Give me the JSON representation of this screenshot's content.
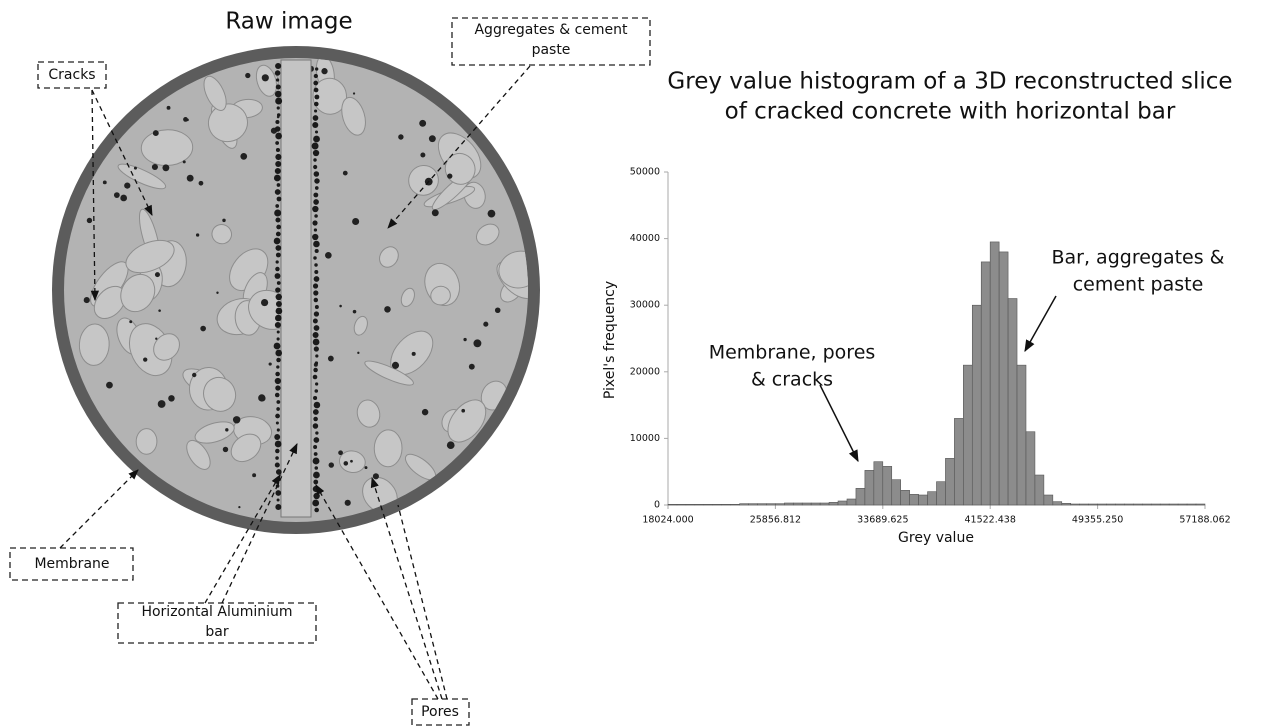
{
  "image": {
    "title": "Raw image",
    "labels": [
      [
        "Cracks"
      ],
      [
        "Aggregates & cement",
        "paste"
      ],
      [
        "Membrane"
      ],
      [
        "Horizontal Aluminium",
        "bar"
      ],
      [
        "Pores"
      ]
    ]
  },
  "chart_data": {
    "type": "histogram",
    "title": [
      "Grey value histogram of a 3D reconstructed slice",
      "of cracked concrete with horizontal bar"
    ],
    "x_label": "Grey value",
    "y_label": "Pixel's frequency",
    "color": "#8c8c8c",
    "bins": [
      18024.0,
      18676.7,
      19329.4,
      19982.1,
      20634.8,
      21287.5,
      21940.2,
      22592.9,
      23245.6,
      23898.3,
      24551.0,
      25203.7,
      25856.4,
      26509.1,
      27161.8,
      27814.5,
      28467.2,
      29119.9,
      29772.6,
      30425.3,
      31078.0,
      31730.7,
      32383.4,
      33036.1,
      33688.8,
      34341.5,
      34994.2,
      35646.9,
      36299.6,
      36952.3,
      37605.0,
      38257.7,
      38910.4,
      39563.1,
      40215.8,
      40868.5,
      41521.2,
      42173.9,
      42826.6,
      43479.3,
      44132.0,
      44784.7,
      45437.4,
      46090.1,
      46742.8,
      47395.5,
      48048.2,
      48700.9,
      49353.6,
      50006.3,
      50659.0,
      51311.7,
      51964.4,
      52617.1,
      53269.8,
      53922.5,
      54575.2,
      55227.9,
      55880.6,
      56533.3,
      57186.0
    ],
    "values": [
      100,
      100,
      100,
      100,
      100,
      100,
      100,
      100,
      200,
      200,
      200,
      200,
      200,
      300,
      300,
      300,
      300,
      300,
      400,
      600,
      900,
      2500,
      5200,
      6500,
      5800,
      3800,
      2200,
      1600,
      1500,
      2000,
      3500,
      7000,
      13000,
      21000,
      30000,
      36500,
      39500,
      38000,
      31000,
      21000,
      11000,
      4500,
      1500,
      500,
      250,
      150,
      150,
      150,
      150,
      150,
      150,
      150,
      150,
      150,
      150,
      150,
      150,
      150,
      150,
      150
    ],
    "xlim": [
      18024,
      57188.062
    ],
    "xticks": [
      {
        "value": 18024,
        "label": "18024.000"
      },
      {
        "value": 25856.812,
        "label": "25856.812"
      },
      {
        "value": 33689.625,
        "label": "33689.625"
      },
      {
        "value": 41522.438,
        "label": "41522.438"
      },
      {
        "value": 49355.25,
        "label": "49355.250"
      },
      {
        "value": 57188.062,
        "label": "57188.062"
      }
    ],
    "ylim": [
      0,
      50000
    ],
    "yticks": [
      0,
      10000,
      20000,
      30000,
      40000,
      50000
    ],
    "annotations": [
      [
        "Membrane, pores",
        "& cracks"
      ],
      [
        "Bar, aggregates &",
        "cement paste"
      ]
    ]
  }
}
